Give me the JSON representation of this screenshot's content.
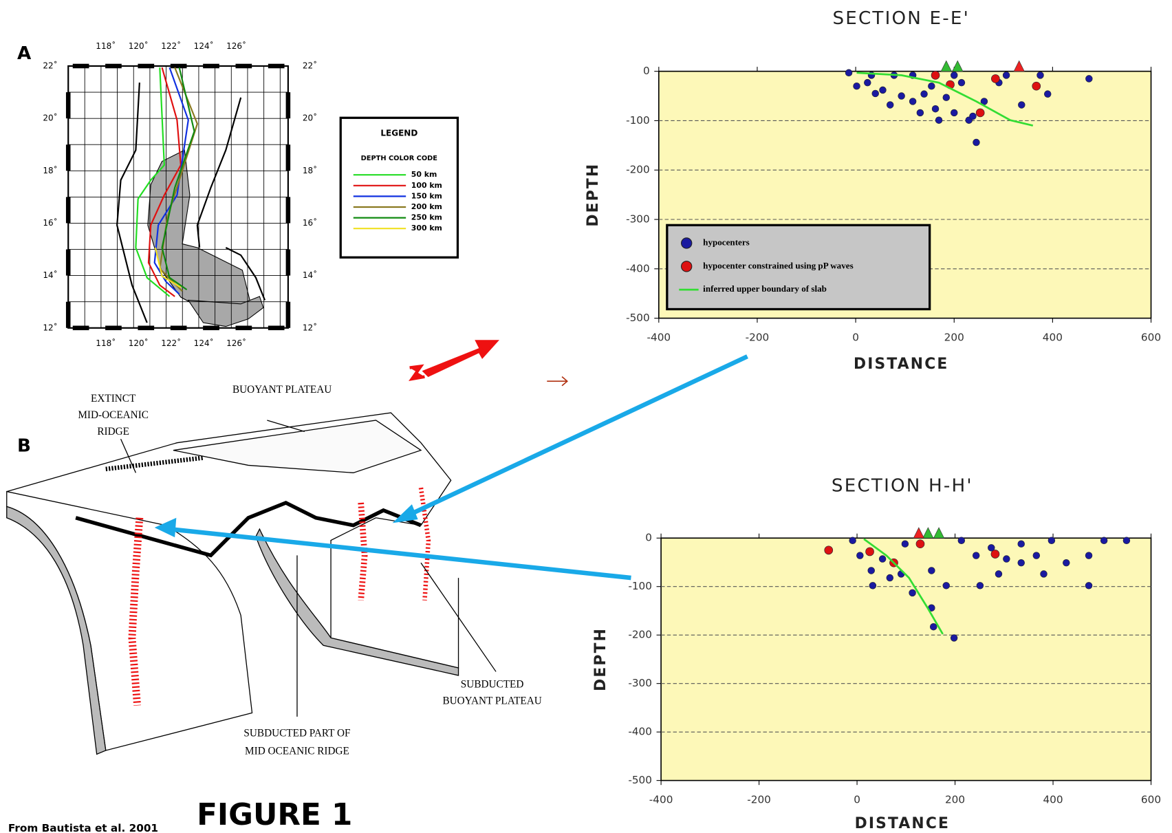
{
  "figure": {
    "title": "FIGURE 1",
    "source": "From Bautista et al. 2001",
    "panel_a_label": "A",
    "panel_b_label": "B"
  },
  "map": {
    "lon_labels": [
      "118˚",
      "120˚",
      "122˚",
      "124˚",
      "126˚"
    ],
    "lat_labels": [
      "22˚",
      "20˚",
      "18˚",
      "16˚",
      "14˚",
      "12˚"
    ],
    "legend": {
      "title": "LEGEND",
      "subtitle": "DEPTH COLOR CODE",
      "entries": [
        {
          "label": "50 km",
          "color": "#22dd22"
        },
        {
          "label": "100 km",
          "color": "#e01010"
        },
        {
          "label": "150 km",
          "color": "#1030e0"
        },
        {
          "label": "200 km",
          "color": "#8a7a20"
        },
        {
          "label": "250 km",
          "color": "#108a10"
        },
        {
          "label": "300 km",
          "color": "#f0e020"
        }
      ]
    }
  },
  "diagram": {
    "labels": [
      [
        "EXTINCT",
        "MID-OCEANIC",
        "RIDGE"
      ],
      [
        "BUOYANT PLATEAU"
      ],
      [
        "SUBDUCTED",
        "BUOYANT PLATEAU"
      ],
      [
        "SUBDUCTED PART OF",
        "MID OCEANIC RIDGE"
      ]
    ]
  },
  "chart_data": [
    {
      "type": "scatter",
      "title": "SECTION  E-E'",
      "x_label": "DISTANCE",
      "y_label": "DEPTH",
      "xlim": [
        -400,
        600
      ],
      "ylim": [
        -500,
        0
      ],
      "xticks": [
        -400,
        -200,
        0,
        200,
        400,
        600
      ],
      "yticks": [
        0,
        -100,
        -200,
        -300,
        -400,
        -500
      ],
      "grid": true,
      "background": "#fdf8b8",
      "legend": "lower left",
      "series": [
        {
          "name": "hypocenters",
          "color": "#1a1aa0",
          "marker": "circle",
          "x": [
            -14,
            32,
            2,
            40,
            55,
            93,
            116,
            139,
            162,
            184,
            215,
            230,
            245,
            238,
            291,
            375,
            474,
            390,
            169,
            131,
            78,
            116,
            200,
            306,
            337,
            70,
            261,
            200,
            24,
            154
          ],
          "values": [
            -3,
            -8,
            -30,
            -45,
            -38,
            -50,
            -61,
            -46,
            -76,
            -53,
            -23,
            -99,
            -144,
            -91,
            -23,
            -8,
            -15,
            -46,
            -99,
            -84,
            -8,
            -8,
            -8,
            -8,
            -68,
            -68,
            -61,
            -84,
            -23,
            -30
          ]
        },
        {
          "name": "hypocenter constrained using pP waves",
          "color": "#dd1111",
          "marker": "circle",
          "x": [
            192,
            284,
            367,
            253,
            162
          ],
          "values": [
            -27,
            -15,
            -30,
            -84,
            -8
          ]
        },
        {
          "name": "inferred upper boundary of slab",
          "color": "#33dd33",
          "marker": "line",
          "x": [
            2,
            93,
            169,
            245,
            314,
            360
          ],
          "values": [
            -3,
            -8,
            -23,
            -61,
            -99,
            -110
          ]
        },
        {
          "color": "#33bb33",
          "marker": "triangle",
          "x": [
            184,
            207
          ],
          "values": [
            0,
            0
          ]
        },
        {
          "color": "#ee2222",
          "marker": "triangle",
          "x": [
            332
          ],
          "values": [
            0
          ]
        }
      ]
    },
    {
      "type": "scatter",
      "title": "SECTION  H-H'",
      "x_label": "DISTANCE",
      "y_label": "DEPTH",
      "xlim": [
        -400,
        600
      ],
      "ylim": [
        -500,
        0
      ],
      "xticks": [
        -400,
        -200,
        0,
        200,
        400,
        600
      ],
      "yticks": [
        0,
        -100,
        -200,
        -300,
        -400,
        -500
      ],
      "grid": true,
      "background": "#fdf8b8",
      "series": [
        {
          "color": "#1a1aa0",
          "marker": "circle",
          "x": [
            -9,
            6,
            29,
            32,
            67,
            90,
            113,
            152,
            182,
            213,
            243,
            274,
            305,
            335,
            366,
            397,
            427,
            473,
            504,
            550,
            473,
            152,
            156,
            198,
            251,
            381,
            52,
            98,
            289,
            335
          ],
          "values": [
            -5,
            -36,
            -67,
            -98,
            -82,
            -74,
            -113,
            -67,
            -98,
            -5,
            -36,
            -20,
            -43,
            -12,
            -36,
            -5,
            -51,
            -36,
            -5,
            -5,
            -98,
            -144,
            -183,
            -206,
            -98,
            -74,
            -43,
            -12,
            -74,
            -51
          ]
        },
        {
          "color": "#dd1111",
          "marker": "circle",
          "x": [
            -58,
            26,
            75,
            129,
            282
          ],
          "values": [
            -25,
            -28,
            -51,
            -12,
            -33
          ]
        },
        {
          "color": "#33dd33",
          "marker": "line",
          "x": [
            14,
            60,
            106,
            144,
            175
          ],
          "values": [
            -2,
            -36,
            -82,
            -144,
            -198
          ]
        },
        {
          "color": "#33bb33",
          "marker": "triangle",
          "x": [
            145,
            167
          ],
          "values": [
            0,
            0
          ]
        },
        {
          "color": "#ee2222",
          "marker": "triangle",
          "x": [
            126
          ],
          "values": [
            0
          ]
        }
      ]
    }
  ]
}
